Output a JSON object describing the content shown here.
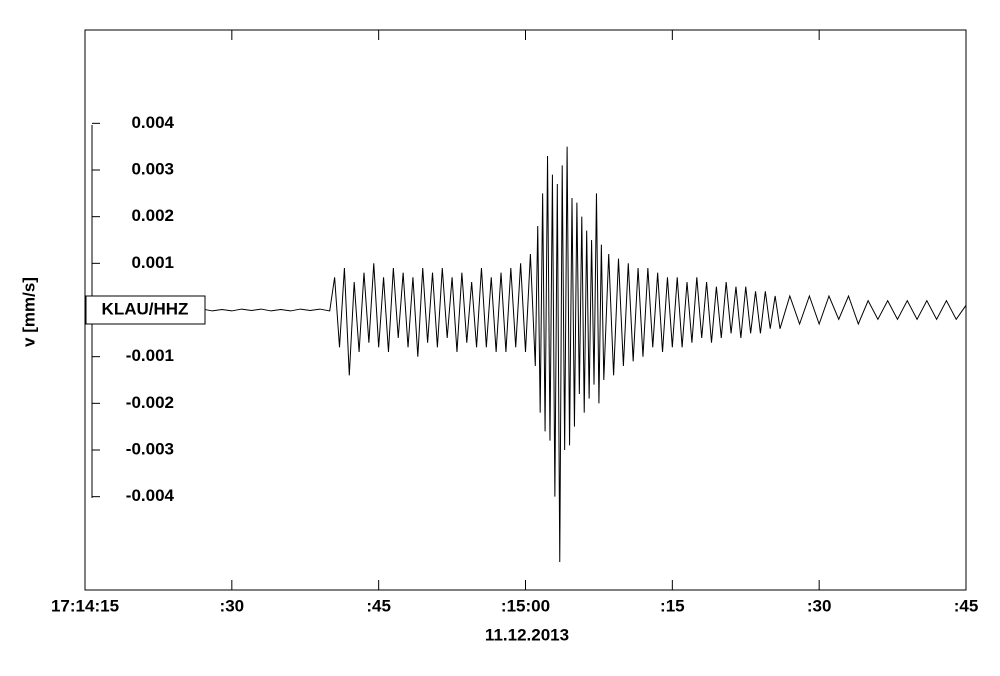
{
  "chart_data": {
    "type": "line",
    "x_label": "11.12.2013",
    "y_label": "v [mm/s]",
    "x": [
      "17:14:27",
      "17:14:28",
      "17:14:29",
      "17:14:30",
      "17:14:31",
      "17:14:32",
      "17:14:33",
      "17:14:34",
      "17:14:35",
      "17:14:36",
      "17:14:37",
      "17:14:38",
      "17:14:39",
      "17:14:40",
      "17:14:40.5",
      "17:14:41",
      "17:14:41.5",
      "17:14:42",
      "17:14:42.5",
      "17:14:43",
      "17:14:43.5",
      "17:14:44",
      "17:14:44.5",
      "17:14:45",
      "17:14:45.5",
      "17:14:46",
      "17:14:46.5",
      "17:14:47",
      "17:14:47.5",
      "17:14:48",
      "17:14:48.5",
      "17:14:49",
      "17:14:49.5",
      "17:14:50",
      "17:14:50.5",
      "17:14:51",
      "17:14:51.5",
      "17:14:52",
      "17:14:52.5",
      "17:14:53",
      "17:14:53.5",
      "17:14:54",
      "17:14:54.5",
      "17:14:55",
      "17:14:55.5",
      "17:14:56",
      "17:14:56.5",
      "17:14:57",
      "17:14:57.5",
      "17:14:58",
      "17:14:58.5",
      "17:14:59",
      "17:14:59.5",
      "17:15:00",
      "17:15:00.5",
      "17:15:01",
      "17:15:01.25",
      "17:15:01.5",
      "17:15:01.75",
      "17:15:02",
      "17:15:02.25",
      "17:15:02.5",
      "17:15:02.75",
      "17:15:03",
      "17:15:03.25",
      "17:15:03.5",
      "17:15:03.75",
      "17:15:04",
      "17:15:04.25",
      "17:15:04.5",
      "17:15:04.75",
      "17:15:05",
      "17:15:05.25",
      "17:15:05.5",
      "17:15:05.75",
      "17:15:06",
      "17:15:06.25",
      "17:15:06.5",
      "17:15:06.75",
      "17:15:07",
      "17:15:07.25",
      "17:15:07.5",
      "17:15:07.75",
      "17:15:08",
      "17:15:08.5",
      "17:15:09",
      "17:15:09.5",
      "17:15:10",
      "17:15:10.5",
      "17:15:11",
      "17:15:11.5",
      "17:15:12",
      "17:15:12.5",
      "17:15:13",
      "17:15:13.5",
      "17:15:14",
      "17:15:14.5",
      "17:15:15",
      "17:15:15.5",
      "17:15:16",
      "17:15:16.5",
      "17:15:17",
      "17:15:17.5",
      "17:15:18",
      "17:15:18.5",
      "17:15:19",
      "17:15:19.5",
      "17:15:20",
      "17:15:20.5",
      "17:15:21",
      "17:15:21.5",
      "17:15:22",
      "17:15:22.5",
      "17:15:23",
      "17:15:23.5",
      "17:15:24",
      "17:15:24.5",
      "17:15:25",
      "17:15:25.5",
      "17:15:26",
      "17:15:27",
      "17:15:28",
      "17:15:29",
      "17:15:30",
      "17:15:31",
      "17:15:32",
      "17:15:33",
      "17:15:34",
      "17:15:35",
      "17:15:36",
      "17:15:37",
      "17:15:38",
      "17:15:39",
      "17:15:40",
      "17:15:41",
      "17:15:42",
      "17:15:43",
      "17:15:44",
      "17:15:45"
    ],
    "series": [
      {
        "name": "KLAU/HHZ",
        "color": "#000000",
        "values": [
          2e-05,
          -2e-05,
          1e-05,
          -2e-05,
          2e-05,
          -1e-05,
          2e-05,
          -2e-05,
          1e-05,
          -2e-05,
          2e-05,
          -1e-05,
          2e-05,
          -2e-05,
          0.0007,
          -0.0008,
          0.0009,
          -0.0014,
          0.0006,
          -0.0009,
          0.0008,
          -0.0007,
          0.001,
          -0.0008,
          0.0007,
          -0.0009,
          0.0009,
          -0.0006,
          0.0008,
          -0.0008,
          0.0007,
          -0.001,
          0.0009,
          -0.0007,
          0.0008,
          -0.0008,
          0.0009,
          -0.0006,
          0.0007,
          -0.0009,
          0.0008,
          -0.0007,
          0.0006,
          -0.0008,
          0.0009,
          -0.0008,
          0.0007,
          -0.0009,
          0.0008,
          -0.0009,
          0.0009,
          -0.0008,
          0.001,
          -0.0009,
          0.0012,
          -0.0012,
          0.0018,
          -0.0022,
          0.0025,
          -0.0026,
          0.0033,
          -0.0028,
          0.0029,
          -0.004,
          0.0027,
          -0.0054,
          0.0031,
          -0.003,
          0.0035,
          -0.0029,
          0.0024,
          -0.0025,
          0.0023,
          -0.0018,
          0.002,
          -0.0022,
          0.0017,
          -0.0019,
          0.0015,
          -0.0016,
          0.0025,
          -0.002,
          0.0014,
          -0.0015,
          0.0012,
          -0.0014,
          0.0011,
          -0.0012,
          0.001,
          -0.0011,
          0.0009,
          -0.001,
          0.0009,
          -0.0008,
          0.0008,
          -0.0009,
          0.0007,
          -0.0008,
          0.0007,
          -0.0008,
          0.0006,
          -0.0007,
          0.0007,
          -0.0006,
          0.0006,
          -0.0007,
          0.0005,
          -0.0006,
          0.0006,
          -0.0005,
          0.0005,
          -0.0006,
          0.0005,
          -0.0005,
          0.0004,
          -0.0005,
          0.0004,
          -0.0004,
          0.0003,
          -0.0004,
          0.0003,
          -0.0003,
          0.0003,
          -0.0003,
          0.0003,
          -0.0002,
          0.0003,
          -0.0003,
          0.0002,
          -0.0002,
          0.0002,
          -0.0002,
          0.0002,
          -0.0002,
          0.0002,
          -0.0002,
          0.0002,
          -0.0002,
          0.0001
        ]
      }
    ],
    "xlim": [
      "17:14:15",
      "17:15:45"
    ],
    "xticks": [
      "17:14:15",
      {
        "value": "17:14:30",
        "label": ":30"
      },
      {
        "value": "17:14:45",
        "label": ":45"
      },
      {
        "value": "17:15:00",
        "label": ":15:00"
      },
      {
        "value": "17:15:15",
        "label": ":15"
      },
      {
        "value": "17:15:30",
        "label": ":30"
      },
      {
        "value": "17:15:45",
        "label": ":45"
      }
    ],
    "ylim": [
      -0.006,
      0.006
    ],
    "yticks": [
      0.004,
      0.003,
      0.002,
      0.001,
      -0.001,
      -0.002,
      -0.003,
      -0.004
    ],
    "grid": false
  }
}
